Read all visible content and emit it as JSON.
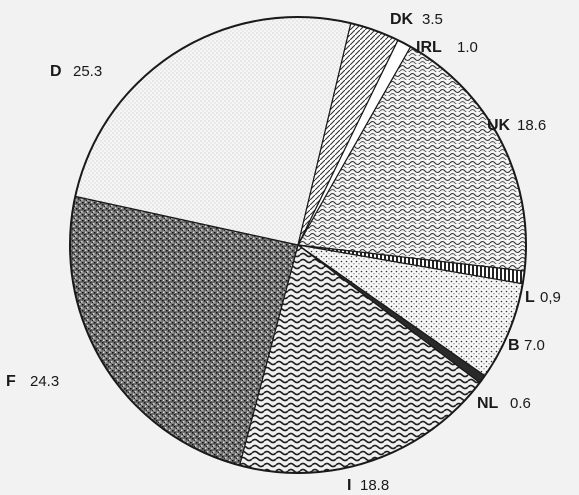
{
  "chart_data": {
    "type": "pie",
    "title": "",
    "start_category": "IRL",
    "direction": "clockwise",
    "categories": [
      "IRL",
      "UK",
      "L",
      "B",
      "NL",
      "I",
      "F",
      "D",
      "DK"
    ],
    "values": [
      1.0,
      18.6,
      0.9,
      7.0,
      0.6,
      18.8,
      24.3,
      25.3,
      3.5
    ],
    "value_labels": [
      "1.0",
      "18.6",
      "0,9",
      "7.0",
      "0.6",
      "18.8",
      "24.3",
      "25.3",
      "3.5"
    ],
    "fills": [
      "blank",
      "wavy-hatch",
      "vertical-stripes",
      "fine-dots",
      "solid-dark",
      "wavy-lines",
      "dense-speckle",
      "light-dots",
      "diagonal-hatch"
    ]
  },
  "colors": {
    "ink": "#1a1a1a",
    "background": "#f2f2f2",
    "paper": "#fafafa"
  }
}
